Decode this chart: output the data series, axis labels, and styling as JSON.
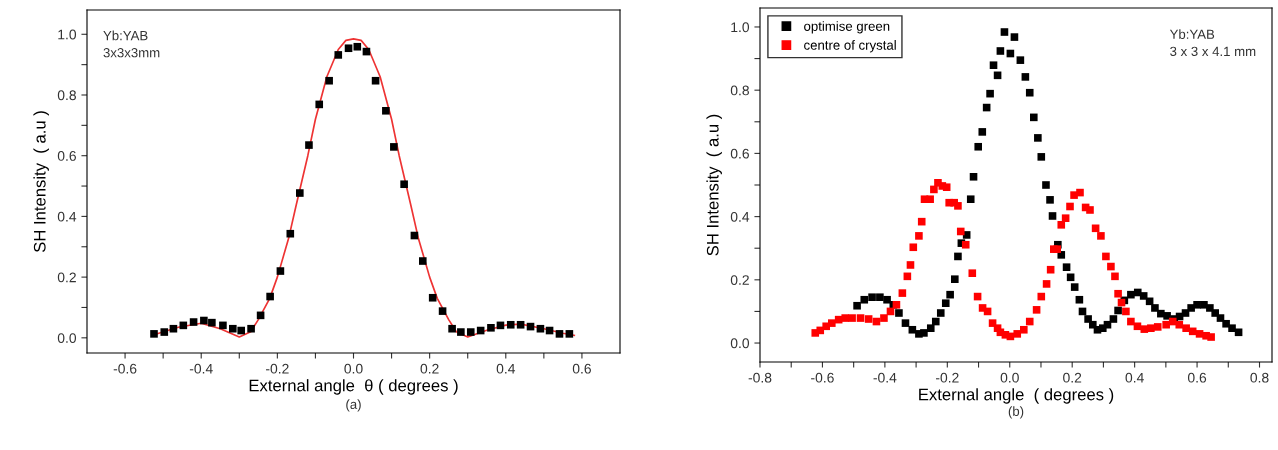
{
  "chart_data": [
    {
      "type": "scatter",
      "xlabel": "External angle  θ ( degrees )",
      "ylabel": "SH Intensity  ( a.u )",
      "annotations": [
        "Yb:YAB\n3x3x3mm",
        "(a)"
      ],
      "marker": "square",
      "grid": false,
      "legend": false,
      "xlim": [
        -0.7,
        0.7
      ],
      "ylim": [
        -0.05,
        1.08
      ],
      "xticks": [
        {
          "value": -0.6,
          "label": "-0.6"
        },
        {
          "value": -0.5,
          "label": null
        },
        {
          "value": -0.4,
          "label": "-0.4"
        },
        {
          "value": -0.3,
          "label": null
        },
        {
          "value": -0.2,
          "label": "-0.2"
        },
        {
          "value": -0.1,
          "label": null
        },
        {
          "value": 0,
          "label": "0.0"
        },
        {
          "value": 0.1,
          "label": null
        },
        {
          "value": 0.2,
          "label": "0.2"
        },
        {
          "value": 0.3,
          "label": null
        },
        {
          "value": 0.4,
          "label": "0.4"
        },
        {
          "value": 0.5,
          "label": null
        },
        {
          "value": 0.6,
          "label": "0.6"
        }
      ],
      "yticks": [
        {
          "value": 0,
          "label": "0.0"
        },
        {
          "value": 0.1,
          "label": null
        },
        {
          "value": 0.2,
          "label": "0.2"
        },
        {
          "value": 0.3,
          "label": null
        },
        {
          "value": 0.4,
          "label": "0.4"
        },
        {
          "value": 0.5,
          "label": null
        },
        {
          "value": 0.6,
          "label": "0.6"
        },
        {
          "value": 0.7,
          "label": null
        },
        {
          "value": 0.8,
          "label": "0.8"
        },
        {
          "value": 0.9,
          "label": null
        },
        {
          "value": 1.0,
          "label": "1.0"
        }
      ],
      "series": [
        {
          "color": "#000000",
          "x": [
            -0.524,
            -0.497,
            -0.473,
            -0.447,
            -0.42,
            -0.393,
            -0.372,
            -0.343,
            -0.317,
            -0.295,
            -0.269,
            -0.244,
            -0.219,
            -0.192,
            -0.166,
            -0.141,
            -0.117,
            -0.09,
            -0.064,
            -0.04,
            -0.013,
            0.01,
            0.034,
            0.058,
            0.085,
            0.106,
            0.133,
            0.16,
            0.182,
            0.208,
            0.234,
            0.259,
            0.282,
            0.308,
            0.334,
            0.361,
            0.386,
            0.413,
            0.439,
            0.465,
            0.491,
            0.515,
            0.541,
            0.567
          ],
          "values": [
            0.013,
            0.019,
            0.03,
            0.041,
            0.052,
            0.057,
            0.05,
            0.041,
            0.03,
            0.024,
            0.03,
            0.074,
            0.136,
            0.22,
            0.343,
            0.477,
            0.635,
            0.769,
            0.847,
            0.932,
            0.954,
            0.959,
            0.943,
            0.847,
            0.748,
            0.629,
            0.506,
            0.337,
            0.253,
            0.132,
            0.088,
            0.03,
            0.019,
            0.019,
            0.024,
            0.033,
            0.041,
            0.043,
            0.043,
            0.037,
            0.03,
            0.024,
            0.013,
            0.013
          ]
        },
        {
          "type": "line",
          "color": "#ee3333",
          "marker": "none",
          "x": [
            -0.52,
            -0.46,
            -0.4,
            -0.35,
            -0.3,
            -0.27,
            -0.25,
            -0.22,
            -0.2,
            -0.17,
            -0.15,
            -0.12,
            -0.1,
            -0.07,
            -0.04,
            -0.02,
            0,
            0.02,
            0.04,
            0.07,
            0.1,
            0.12,
            0.15,
            0.17,
            0.2,
            0.22,
            0.25,
            0.27,
            0.3,
            0.35,
            0.4,
            0.44,
            0.5,
            0.55,
            0.58
          ],
          "values": [
            0.012,
            0.035,
            0.048,
            0.03,
            0.003,
            0.02,
            0.06,
            0.13,
            0.2,
            0.33,
            0.44,
            0.6,
            0.72,
            0.86,
            0.95,
            0.98,
            0.985,
            0.98,
            0.95,
            0.86,
            0.72,
            0.6,
            0.44,
            0.33,
            0.2,
            0.13,
            0.06,
            0.02,
            0.003,
            0.025,
            0.042,
            0.045,
            0.03,
            0.015,
            0.008
          ]
        }
      ]
    },
    {
      "type": "scatter",
      "xlabel": "External angle  ( degrees )",
      "ylabel": "SH Intensity  ( a.u )",
      "annotations": [
        "Yb:YAB\n3 x 3 x 4.1 mm",
        "(b)"
      ],
      "marker": "square",
      "grid": false,
      "legend": "top left",
      "xlim": [
        -0.8,
        0.84
      ],
      "ylim": [
        -0.06,
        1.06
      ],
      "xticks": [
        {
          "value": -0.8,
          "label": "-0.8"
        },
        {
          "value": -0.7,
          "label": null
        },
        {
          "value": -0.6,
          "label": "-0.6"
        },
        {
          "value": -0.5,
          "label": null
        },
        {
          "value": -0.4,
          "label": "-0.4"
        },
        {
          "value": -0.3,
          "label": null
        },
        {
          "value": -0.2,
          "label": "-0.2"
        },
        {
          "value": -0.1,
          "label": null
        },
        {
          "value": 0,
          "label": "0.0"
        },
        {
          "value": 0.1,
          "label": null
        },
        {
          "value": 0.2,
          "label": "0.2"
        },
        {
          "value": 0.3,
          "label": null
        },
        {
          "value": 0.4,
          "label": "0.4"
        },
        {
          "value": 0.5,
          "label": null
        },
        {
          "value": 0.6,
          "label": "0.6"
        },
        {
          "value": 0.7,
          "label": null
        },
        {
          "value": 0.8,
          "label": "0.8"
        }
      ],
      "yticks": [
        {
          "value": 0,
          "label": "0.0"
        },
        {
          "value": 0.1,
          "label": null
        },
        {
          "value": 0.2,
          "label": "0.2"
        },
        {
          "value": 0.3,
          "label": null
        },
        {
          "value": 0.4,
          "label": "0.4"
        },
        {
          "value": 0.5,
          "label": null
        },
        {
          "value": 0.6,
          "label": "0.6"
        },
        {
          "value": 0.7,
          "label": null
        },
        {
          "value": 0.8,
          "label": "0.8"
        },
        {
          "value": 0.9,
          "label": null
        },
        {
          "value": 1.0,
          "label": "1.0"
        }
      ],
      "series": [
        {
          "name": "optimise green",
          "color": "#000000",
          "x": [
            -0.489,
            -0.466,
            -0.441,
            -0.416,
            -0.393,
            -0.373,
            -0.355,
            -0.334,
            -0.312,
            -0.291,
            -0.275,
            -0.253,
            -0.237,
            -0.221,
            -0.205,
            -0.191,
            -0.176,
            -0.166,
            -0.155,
            -0.138,
            -0.125,
            -0.116,
            -0.101,
            -0.088,
            -0.074,
            -0.063,
            -0.052,
            -0.039,
            -0.03,
            -0.017,
            0.002,
            0.015,
            0.034,
            0.05,
            0.064,
            0.077,
            0.09,
            0.101,
            0.116,
            0.129,
            0.137,
            0.154,
            0.165,
            0.182,
            0.195,
            0.208,
            0.223,
            0.233,
            0.251,
            0.266,
            0.281,
            0.298,
            0.313,
            0.332,
            0.347,
            0.367,
            0.388,
            0.41,
            0.429,
            0.448,
            0.465,
            0.484,
            0.504,
            0.527,
            0.544,
            0.563,
            0.581,
            0.6,
            0.622,
            0.641,
            0.658,
            0.675,
            0.693,
            0.712,
            0.733
          ],
          "values": [
            0.118,
            0.137,
            0.145,
            0.145,
            0.137,
            0.121,
            0.095,
            0.063,
            0.042,
            0.029,
            0.032,
            0.047,
            0.068,
            0.095,
            0.126,
            0.153,
            0.202,
            0.274,
            0.316,
            0.342,
            0.455,
            0.526,
            0.621,
            0.668,
            0.745,
            0.789,
            0.879,
            0.847,
            0.924,
            0.984,
            0.916,
            0.968,
            0.895,
            0.842,
            0.792,
            0.714,
            0.649,
            0.589,
            0.5,
            0.453,
            0.402,
            0.311,
            0.279,
            0.24,
            0.208,
            0.177,
            0.137,
            0.1,
            0.076,
            0.058,
            0.042,
            0.047,
            0.058,
            0.076,
            0.103,
            0.135,
            0.153,
            0.16,
            0.149,
            0.132,
            0.111,
            0.093,
            0.086,
            0.076,
            0.084,
            0.095,
            0.111,
            0.121,
            0.121,
            0.111,
            0.095,
            0.079,
            0.061,
            0.047,
            0.034
          ]
        },
        {
          "name": "centre of crystal",
          "color": "#ff0000",
          "x": [
            -0.623,
            -0.607,
            -0.588,
            -0.57,
            -0.548,
            -0.527,
            -0.505,
            -0.478,
            -0.452,
            -0.427,
            -0.403,
            -0.382,
            -0.363,
            -0.344,
            -0.328,
            -0.318,
            -0.309,
            -0.291,
            -0.282,
            -0.273,
            -0.255,
            -0.243,
            -0.23,
            -0.216,
            -0.202,
            -0.194,
            -0.178,
            -0.166,
            -0.157,
            -0.141,
            -0.12,
            -0.103,
            -0.087,
            -0.071,
            -0.055,
            -0.039,
            -0.03,
            -0.014,
            0.002,
            0.024,
            0.045,
            0.064,
            0.086,
            0.101,
            0.118,
            0.131,
            0.141,
            0.152,
            0.165,
            0.179,
            0.193,
            0.206,
            0.225,
            0.243,
            0.257,
            0.275,
            0.292,
            0.308,
            0.324,
            0.337,
            0.347,
            0.358,
            0.372,
            0.388,
            0.409,
            0.431,
            0.452,
            0.474,
            0.501,
            0.522,
            0.543,
            0.565,
            0.586,
            0.608,
            0.629,
            0.645
          ],
          "values": [
            0.032,
            0.04,
            0.053,
            0.063,
            0.074,
            0.079,
            0.079,
            0.079,
            0.076,
            0.068,
            0.079,
            0.1,
            0.121,
            0.158,
            0.211,
            0.247,
            0.303,
            0.339,
            0.384,
            0.455,
            0.455,
            0.486,
            0.507,
            0.497,
            0.493,
            0.444,
            0.444,
            0.434,
            0.353,
            0.311,
            0.221,
            0.147,
            0.111,
            0.1,
            0.063,
            0.047,
            0.034,
            0.026,
            0.021,
            0.029,
            0.042,
            0.068,
            0.105,
            0.147,
            0.187,
            0.232,
            0.297,
            0.297,
            0.374,
            0.395,
            0.432,
            0.468,
            0.476,
            0.429,
            0.421,
            0.363,
            0.339,
            0.274,
            0.242,
            0.211,
            0.156,
            0.128,
            0.1,
            0.068,
            0.053,
            0.044,
            0.047,
            0.051,
            0.058,
            0.068,
            0.058,
            0.047,
            0.037,
            0.029,
            0.023,
            0.019
          ]
        }
      ]
    }
  ]
}
